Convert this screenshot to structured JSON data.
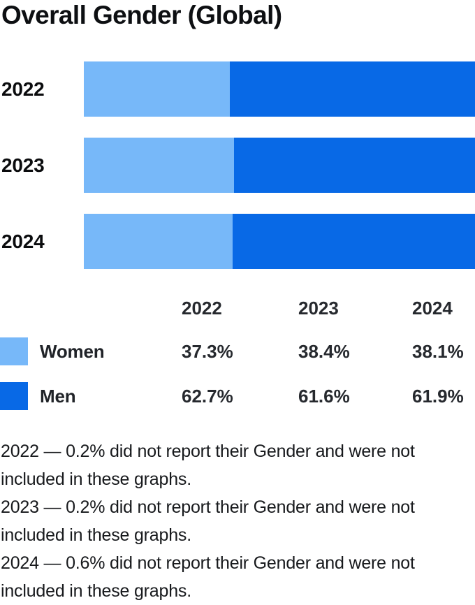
{
  "title": "Overall Gender (Global)",
  "colors": {
    "women": "#77b8f9",
    "men": "#0869e6",
    "title_text": "#0d0f12",
    "table_text": "#26292e",
    "footnote_text": "#17191c"
  },
  "chart_data": {
    "type": "bar",
    "orientation": "horizontal",
    "stacked": true,
    "title": "Overall Gender (Global)",
    "categories": [
      "2022",
      "2023",
      "2024"
    ],
    "series": [
      {
        "name": "Women",
        "color": "#77b8f9",
        "values": [
          37.3,
          38.4,
          38.1
        ]
      },
      {
        "name": "Men",
        "color": "#0869e6",
        "values": [
          62.7,
          61.6,
          61.9
        ]
      }
    ],
    "unit": "%",
    "xlim": [
      0,
      100
    ],
    "grid": false,
    "axis_ticks_visible": false,
    "legend_position": "bottom-left-table"
  },
  "legend_table": {
    "column_headers": [
      "2022",
      "2023",
      "2024"
    ],
    "rows": [
      {
        "label": "Women",
        "swatch_color": "#77b8f9",
        "values": [
          "37.3%",
          "38.4%",
          "38.1%"
        ]
      },
      {
        "label": "Men",
        "swatch_color": "#0869e6",
        "values": [
          "62.7%",
          "61.6%",
          "61.9%"
        ]
      }
    ]
  },
  "footnotes": [
    "2022 — 0.2% did not report their Gender and were not included in these graphs.",
    "2023 — 0.2% did not report their Gender and were not included in these graphs.",
    "2024 — 0.6% did not report their Gender and were not included in these graphs."
  ]
}
